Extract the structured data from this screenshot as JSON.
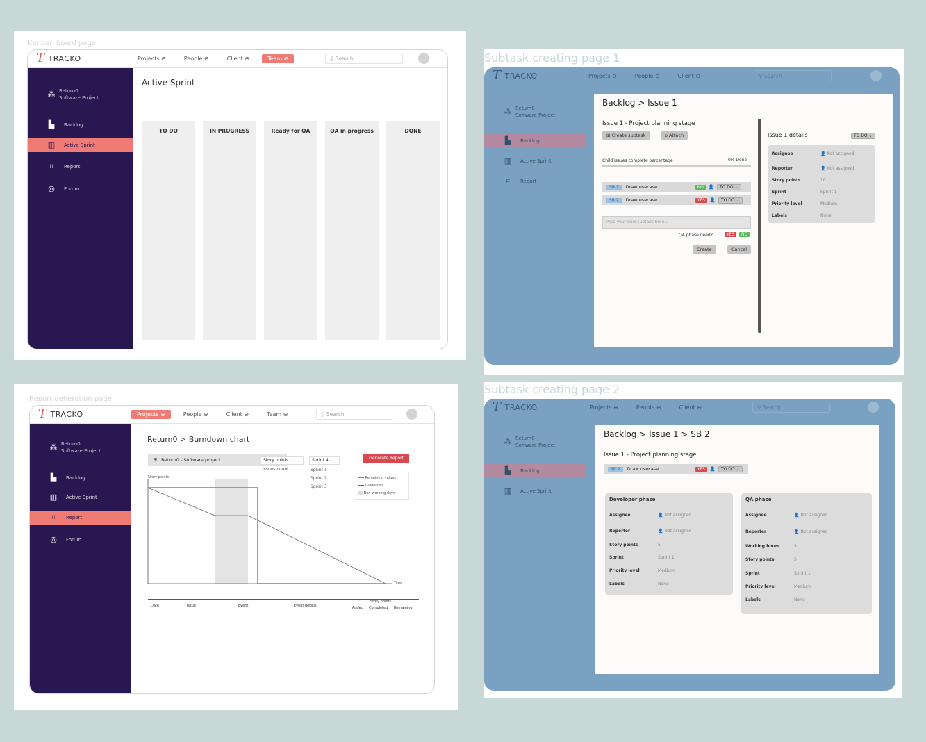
{
  "common": {
    "brand": "TRACKO",
    "project_line1": "Return0",
    "project_line2": "Software Project",
    "search_placeholder": "Search"
  },
  "panel1": {
    "label": "Kanban board page",
    "nav": [
      "Projects",
      "People",
      "Client",
      "Team"
    ],
    "active_nav": "Team",
    "sidebar": [
      "Backlog",
      "Active Sprint",
      "Report",
      "Forum"
    ],
    "title": "Active Sprint",
    "columns": [
      "TO DO",
      "IN PROGRESS",
      "Ready for QA",
      "QA in progress",
      "DONE"
    ]
  },
  "panel2": {
    "label": "Subtask creating page 1",
    "nav": [
      "Projects",
      "People",
      "Client"
    ],
    "sidebar": [
      "Backlog",
      "Active Sprint",
      "Report"
    ],
    "breadcrumb": "Backlog > Issue 1",
    "issue_title": "Issue 1 - Project planning stage",
    "create_subtask": "Create subtask",
    "attach": "Attach",
    "child_label": "Child issues complete percentage",
    "child_pct": "0% Done",
    "subtasks": [
      {
        "id": "SB 1",
        "name": "Draw usecase",
        "qa": "NO",
        "status": "TO DO"
      },
      {
        "id": "SB 2",
        "name": "Draw usecase",
        "qa": "YES",
        "status": "TO DO"
      }
    ],
    "new_subtask_placeholder": "Type your new subtask here...",
    "qa_question": "QA phase need?",
    "yes": "YES",
    "no": "NO",
    "create": "Create",
    "cancel": "Cancel",
    "details_title": "Issue 1 details",
    "details_status": "TO DO",
    "details": [
      {
        "k": "Assignee",
        "v": "Not assigned"
      },
      {
        "k": "Reporter",
        "v": "Not assigned"
      },
      {
        "k": "Story points",
        "v": "10"
      },
      {
        "k": "Sprint",
        "v": "Sprint 1"
      },
      {
        "k": "Priority level",
        "v": "Medium"
      },
      {
        "k": "Labels",
        "v": "None"
      }
    ]
  },
  "panel3": {
    "label": "Report generation page",
    "nav": [
      "Projects",
      "People",
      "Client",
      "Team"
    ],
    "active_nav": "Projects",
    "sidebar": [
      "Backlog",
      "Active Sprint",
      "Report",
      "Forum"
    ],
    "breadcrumb": "Return0 > Burndown chart",
    "project_select": "Return0 - Software project",
    "metric_select": "Story points",
    "metric_options": [
      "Issues count"
    ],
    "sprint_select": "Sprint 4",
    "sprint_options": [
      "Sprint 1",
      "Sprint 2",
      "Sprint 3"
    ],
    "generate": "Generate Report",
    "ylabel": "Story points",
    "xlabel": "Time",
    "legend": [
      "Remaining values",
      "Guidelines",
      "Non-working days"
    ],
    "table_headers": [
      "Date",
      "Issue",
      "Event",
      "Event details"
    ],
    "story_points_header": "Story points",
    "story_points_sub": [
      "Added",
      "Completed",
      "Remaining"
    ]
  },
  "panel4": {
    "label": "Subtask creating page 2",
    "nav": [
      "Projects",
      "People",
      "Client"
    ],
    "sidebar": [
      "Backlog",
      "Active Sprint"
    ],
    "breadcrumb": "Backlog > Issue 1 > SB 2",
    "issue_title": "Issue 1 - Project planning stage",
    "subtask": {
      "id": "SB 2",
      "name": "Draw usecase",
      "qa": "YES",
      "status": "TO DO"
    },
    "dev_title": "Developer phase",
    "dev": [
      {
        "k": "Assignee",
        "v": "Not assigned"
      },
      {
        "k": "Reporter",
        "v": "Not assigned"
      },
      {
        "k": "Story points",
        "v": "5"
      },
      {
        "k": "Sprint",
        "v": "Sprint 1"
      },
      {
        "k": "Priority level",
        "v": "Medium"
      },
      {
        "k": "Labels",
        "v": "None"
      }
    ],
    "qa_title": "QA phase",
    "qa": [
      {
        "k": "Assignee",
        "v": "Not assigned"
      },
      {
        "k": "Reporter",
        "v": "Not assigned"
      },
      {
        "k": "Working hours",
        "v": "5"
      },
      {
        "k": "Story points",
        "v": "5"
      },
      {
        "k": "Sprint",
        "v": "Sprint 1"
      },
      {
        "k": "Priority level",
        "v": "Medium"
      },
      {
        "k": "Labels",
        "v": "None"
      }
    ]
  },
  "colors": {
    "accent": "#f07a74",
    "sidebar": "#281750",
    "blue": "#7aa1c1"
  }
}
